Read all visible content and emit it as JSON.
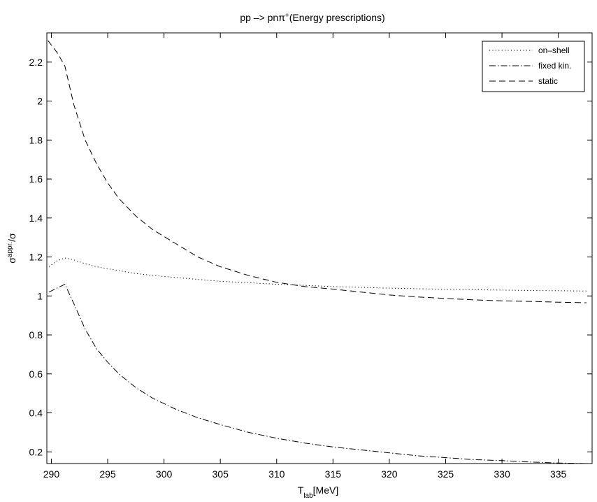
{
  "chart_data": {
    "type": "line",
    "title": {
      "main": "pp –> pnπ",
      "sup": "+",
      "rest": "(Energy prescriptions)"
    },
    "xlabel": {
      "main": "T",
      "sub": "lab",
      "rest": "[MeV]"
    },
    "ylabel": {
      "main": "σ",
      "sup": "appr.",
      "rest": "/σ"
    },
    "xlim": [
      289.6,
      338
    ],
    "ylim": [
      0.14,
      2.35
    ],
    "xticks": [
      290,
      295,
      300,
      305,
      310,
      315,
      320,
      325,
      330,
      335
    ],
    "xtick_labels": [
      "290",
      "295",
      "300",
      "305",
      "310",
      "315",
      "320",
      "325",
      "330",
      "335"
    ],
    "yticks": [
      0.2,
      0.4,
      0.6,
      0.8,
      1.0,
      1.2,
      1.4,
      1.6,
      1.8,
      2.0,
      2.2
    ],
    "ytick_labels": [
      "0.2",
      "0.4",
      "0.6",
      "0.8",
      "1",
      "1.2",
      "1.4",
      "1.6",
      "1.8",
      "2",
      "2.2"
    ],
    "grid": false,
    "legend_position": "top-right",
    "series": [
      {
        "name": "on–shell",
        "style": "dotted",
        "color": "#000000",
        "x": [
          289.8,
          290.5,
          291.2,
          292,
          293,
          294,
          295,
          296,
          297.5,
          299,
          301,
          303,
          305,
          307.5,
          310,
          312.5,
          315,
          317.5,
          320,
          322.5,
          325,
          327.5,
          330,
          332.5,
          335,
          337.5
        ],
        "y": [
          1.15,
          1.18,
          1.195,
          1.185,
          1.165,
          1.15,
          1.14,
          1.13,
          1.115,
          1.105,
          1.095,
          1.085,
          1.075,
          1.068,
          1.06,
          1.054,
          1.048,
          1.044,
          1.04,
          1.037,
          1.034,
          1.032,
          1.03,
          1.028,
          1.027,
          1.025
        ]
      },
      {
        "name": "fixed kin.",
        "style": "dashdot",
        "color": "#000000",
        "x": [
          289.8,
          290.5,
          291.2,
          292,
          293,
          294,
          295,
          296,
          297.5,
          299,
          301,
          303,
          305,
          307.5,
          310,
          312.5,
          315,
          317.5,
          320,
          322.5,
          325,
          327.5,
          330,
          332.5,
          335,
          337.5
        ],
        "y": [
          1.02,
          1.04,
          1.06,
          0.96,
          0.83,
          0.73,
          0.66,
          0.6,
          0.53,
          0.475,
          0.42,
          0.375,
          0.34,
          0.3,
          0.27,
          0.245,
          0.225,
          0.21,
          0.195,
          0.18,
          0.17,
          0.16,
          0.155,
          0.148,
          0.143,
          0.14
        ]
      },
      {
        "name": "static",
        "style": "dashed",
        "color": "#000000",
        "x": [
          289.7,
          290.5,
          291.2,
          292,
          293,
          294,
          295,
          296,
          297.5,
          299,
          301,
          303,
          305,
          307.5,
          310,
          312.5,
          315,
          317.5,
          320,
          322.5,
          325,
          327.5,
          330,
          332.5,
          335,
          337.5
        ],
        "y": [
          2.31,
          2.25,
          2.18,
          1.98,
          1.8,
          1.68,
          1.58,
          1.5,
          1.41,
          1.34,
          1.27,
          1.2,
          1.15,
          1.105,
          1.07,
          1.048,
          1.035,
          1.02,
          1.005,
          0.995,
          0.987,
          0.98,
          0.975,
          0.972,
          0.968,
          0.965
        ]
      }
    ]
  }
}
